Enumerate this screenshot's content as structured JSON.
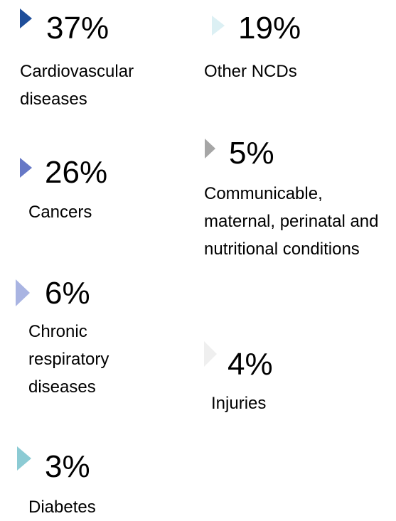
{
  "items": [
    {
      "percent": "37%",
      "label": "Cardiovascular diseases",
      "color": "#1f4e9a"
    },
    {
      "percent": "26%",
      "label": "Cancers",
      "color": "#6678c6"
    },
    {
      "percent": "6%",
      "label": "Chronic respiratory diseases",
      "color": "#a9b4e2"
    },
    {
      "percent": "3%",
      "label": "Diabetes",
      "color": "#8ccbd4"
    },
    {
      "percent": "19%",
      "label": "Other NCDs",
      "color": "#dcf0f4"
    },
    {
      "percent": "5%",
      "label": "Communicable, maternal, perinatal and nutritional conditions",
      "color": "#a6a6a6"
    },
    {
      "percent": "4%",
      "label": "Injuries",
      "color": "#efefef"
    }
  ]
}
